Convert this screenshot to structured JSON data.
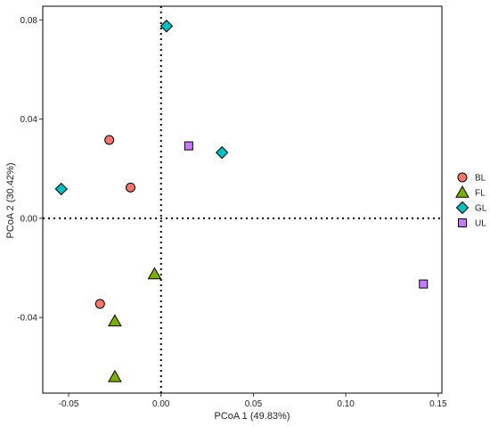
{
  "chart_data": {
    "type": "scatter",
    "title": "",
    "xlabel": "PCoA 1 (49.83%)",
    "ylabel": "PCoA 2 (30.42%)",
    "xlim": [
      -0.064,
      0.152
    ],
    "ylim": [
      -0.0705,
      0.0855
    ],
    "xticks": [
      {
        "value": -0.05,
        "label": "-0.05"
      },
      {
        "value": 0.0,
        "label": "0.00"
      },
      {
        "value": 0.05,
        "label": "0.05"
      },
      {
        "value": 0.1,
        "label": "0.10"
      },
      {
        "value": 0.15,
        "label": "0.15"
      }
    ],
    "yticks": [
      {
        "value": -0.04,
        "label": "-0.04"
      },
      {
        "value": 0.0,
        "label": "0.00"
      },
      {
        "value": 0.04,
        "label": "0.04"
      },
      {
        "value": 0.08,
        "label": "0.08"
      }
    ],
    "grid": false,
    "reference_lines": {
      "x": 0,
      "y": 0,
      "style": "dotted"
    },
    "legend_position": "right",
    "series": [
      {
        "name": "BL",
        "shape": "circle",
        "color": "#F8766D",
        "points": [
          [
            -0.028,
            0.0316
          ],
          [
            -0.0165,
            0.0124
          ],
          [
            -0.033,
            -0.0345
          ]
        ]
      },
      {
        "name": "FL",
        "shape": "triangle",
        "color": "#7CAE00",
        "points": [
          [
            -0.0035,
            -0.0225
          ],
          [
            -0.025,
            -0.0415
          ],
          [
            -0.025,
            -0.064
          ]
        ]
      },
      {
        "name": "GL",
        "shape": "diamond",
        "color": "#00BFC4",
        "points": [
          [
            0.003,
            0.0775
          ],
          [
            0.033,
            0.0265
          ],
          [
            -0.054,
            0.0118
          ]
        ]
      },
      {
        "name": "UL",
        "shape": "square",
        "color": "#C77CFF",
        "points": [
          [
            0.015,
            0.0292
          ],
          [
            0.142,
            -0.0265
          ]
        ]
      }
    ]
  }
}
